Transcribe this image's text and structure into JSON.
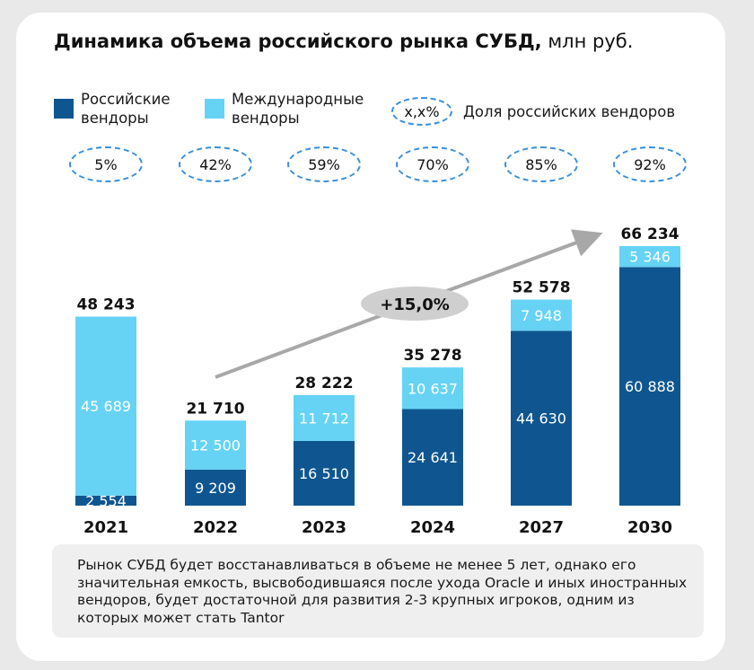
{
  "title_bold": "Динамика объема российского рынка СУБД,",
  "title_unit": "млн руб.",
  "legend": {
    "russian": "Российские\nвендоры",
    "international": "Международные\nвендоры",
    "share_sample": "x,x%",
    "share_label": "Доля российских вендоров"
  },
  "colors": {
    "russian": "#0f5690",
    "international": "#66d3f5",
    "ellipse": "#3a8fd6",
    "arrow": "#a8a8a8"
  },
  "growth_label": "+15,0%",
  "note": "Рынок СУБД будет восстанавливаться в объеме не менее 5 лет, однако его значительная емкость, высвободившаяся после ухода Oracle и иных иностранных вендоров, будет достаточной для развития 2-3 крупных игроков, одним из которых может стать Tantor",
  "chart_data": {
    "type": "bar",
    "stacked": true,
    "categories": [
      "2021",
      "2022",
      "2023",
      "2024",
      "2027",
      "2030"
    ],
    "series": [
      {
        "name": "Российские вендоры",
        "values": [
          2554,
          9209,
          16510,
          24641,
          44630,
          60888
        ],
        "labels": [
          "2 554",
          "9 209",
          "16 510",
          "24 641",
          "44 630",
          "60 888"
        ]
      },
      {
        "name": "Международные вендоры",
        "values": [
          45689,
          12500,
          11712,
          10637,
          7948,
          5346
        ],
        "labels": [
          "45 689",
          "12 500",
          "11 712",
          "10 637",
          "7 948",
          "5 346"
        ]
      }
    ],
    "totals": [
      48243,
      21710,
      28222,
      35278,
      52578,
      66234
    ],
    "total_labels": [
      "48 243",
      "21 710",
      "28 222",
      "35 278",
      "52 578",
      "66 234"
    ],
    "shares": [
      "5%",
      "42%",
      "59%",
      "70%",
      "85%",
      "92%"
    ],
    "ylim": [
      0,
      66234
    ]
  }
}
